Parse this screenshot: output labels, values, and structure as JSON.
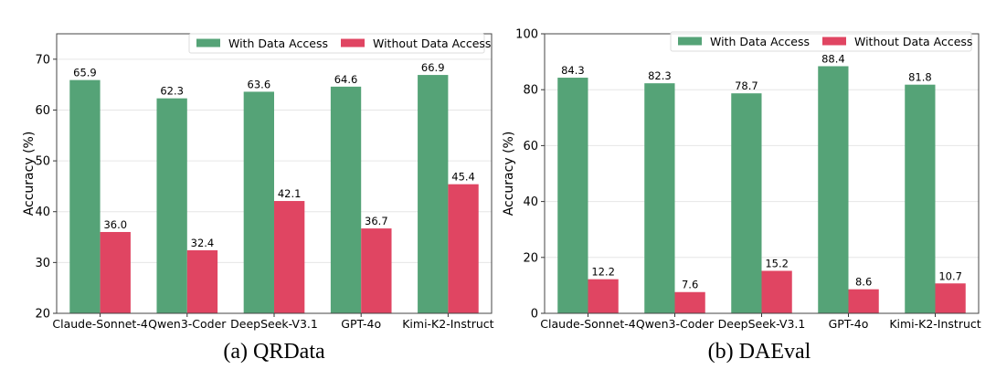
{
  "chart_data": [
    {
      "type": "bar",
      "title": "",
      "caption": "(a) QRData",
      "xlabel": "",
      "ylabel": "Accuracy (%)",
      "ylim": [
        20,
        75
      ],
      "yticks": [
        20,
        30,
        40,
        50,
        60,
        70
      ],
      "grid": true,
      "legend_position": "top-right",
      "categories": [
        "Claude-Sonnet-4",
        "Qwen3-Coder",
        "DeepSeek-V3.1",
        "GPT-4o",
        "Kimi-K2-Instruct"
      ],
      "series": [
        {
          "name": "With Data Access",
          "color": "#55a377",
          "values": [
            65.9,
            62.3,
            63.6,
            64.6,
            66.9
          ],
          "labels": [
            "65.9",
            "62.3",
            "63.6",
            "64.6",
            "66.9"
          ]
        },
        {
          "name": "Without Data Access",
          "color": "#e04562",
          "values": [
            36.0,
            32.4,
            42.1,
            36.7,
            45.4
          ],
          "labels": [
            "36.0",
            "32.4",
            "42.1",
            "36.7",
            "45.4"
          ]
        }
      ]
    },
    {
      "type": "bar",
      "title": "",
      "caption": "(b) DAEval",
      "xlabel": "",
      "ylabel": "Accuracy (%)",
      "ylim": [
        0,
        100
      ],
      "yticks": [
        0,
        20,
        40,
        60,
        80,
        100
      ],
      "grid": true,
      "legend_position": "top-right",
      "categories": [
        "Claude-Sonnet-4",
        "Qwen3-Coder",
        "DeepSeek-V3.1",
        "GPT-4o",
        "Kimi-K2-Instruct"
      ],
      "series": [
        {
          "name": "With Data Access",
          "color": "#55a377",
          "values": [
            84.3,
            82.3,
            78.7,
            88.4,
            81.8
          ],
          "labels": [
            "84.3",
            "82.3",
            "78.7",
            "88.4",
            "81.8"
          ]
        },
        {
          "name": "Without Data Access",
          "color": "#e04562",
          "values": [
            12.2,
            7.6,
            15.2,
            8.6,
            10.7
          ],
          "labels": [
            "12.2",
            "7.6",
            "15.2",
            "8.6",
            "10.7"
          ]
        }
      ]
    }
  ]
}
